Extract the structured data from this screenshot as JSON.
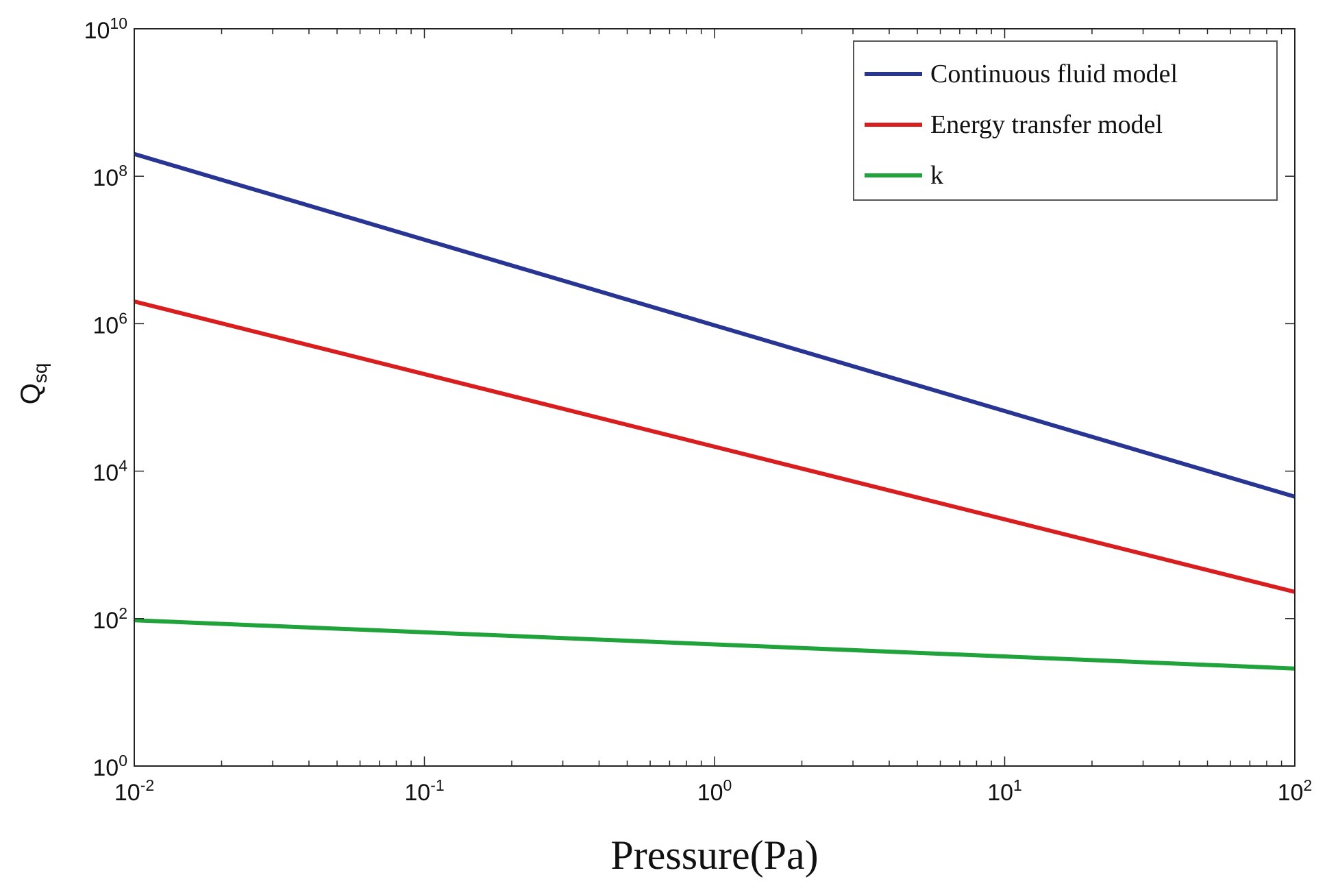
{
  "chart_data": {
    "type": "line",
    "title": "",
    "xlabel": "Pressure(Pa)",
    "ylabel": {
      "base": "Q",
      "subscript": "sq"
    },
    "xscale": "log",
    "yscale": "log",
    "xlim": [
      0.01,
      100
    ],
    "ylim": [
      1,
      10000000000
    ],
    "grid": false,
    "legend_position": "top-right",
    "x_ticks": [
      {
        "value": 0.01,
        "base": "10",
        "exp": "-2"
      },
      {
        "value": 0.1,
        "base": "10",
        "exp": "-1"
      },
      {
        "value": 1,
        "base": "10",
        "exp": "0"
      },
      {
        "value": 10,
        "base": "10",
        "exp": "1"
      },
      {
        "value": 100,
        "base": "10",
        "exp": "2"
      }
    ],
    "y_ticks": [
      {
        "value": 1,
        "base": "10",
        "exp": "0"
      },
      {
        "value": 100,
        "base": "10",
        "exp": "2"
      },
      {
        "value": 10000,
        "base": "10",
        "exp": "4"
      },
      {
        "value": 1000000,
        "base": "10",
        "exp": "6"
      },
      {
        "value": 100000000,
        "base": "10",
        "exp": "8"
      },
      {
        "value": 10000000000,
        "base": "10",
        "exp": "10"
      }
    ],
    "series": [
      {
        "name": "Continuous fluid model",
        "color": "#283593",
        "x": [
          0.01,
          100
        ],
        "y": [
          200000000,
          4500
        ]
      },
      {
        "name": "Energy transfer model",
        "color": "#d81e1e",
        "x": [
          0.01,
          100
        ],
        "y": [
          2000000,
          230
        ]
      },
      {
        "name": "k",
        "color": "#1fa33a",
        "x": [
          0.01,
          100
        ],
        "y": [
          95,
          21
        ]
      }
    ]
  }
}
